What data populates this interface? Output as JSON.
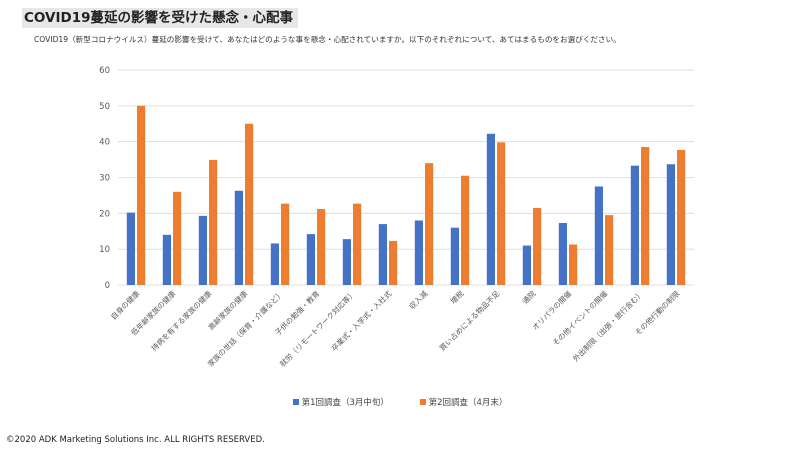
{
  "title": "COVID19蔓延の影響を受けた懸念・心配事",
  "subtitle": "COVID19（新型コロナウイルス）蔓延の影響を受けて、あなたはどのような事を懸念・心配されていますか。以下のそれぞれについて、あてはまるものをお選びください。",
  "copyright": "©2020 ADK Marketing Solutions Inc. ALL RIGHTS RESERVED.",
  "colors": {
    "series1": "#4472c4",
    "series2": "#ed7d31",
    "gridline": "#d9d9d9",
    "axis_text": "#595959"
  },
  "chart_data": {
    "type": "bar",
    "ylim": [
      0,
      60
    ],
    "yticks": [
      0,
      10,
      20,
      30,
      40,
      50,
      60
    ],
    "grid": true,
    "legend_position": "bottom",
    "categories": [
      "自身の健康",
      "低年齢家族の健康",
      "持病を有する家族の健康",
      "高齢家族の健康",
      "家族の世話（保育・介護など）",
      "子供の勉強・教育",
      "就労（リモートワーク対応等）",
      "卒業式・入学式・入社式",
      "収入減",
      "増税",
      "買い占めによる物品不足",
      "通院",
      "オリパラの開催",
      "その他イベントの開催",
      "外出制限（出張・旅行含む）",
      "その他行動の制限"
    ],
    "series": [
      {
        "name": "第1回調査（3月中旬）",
        "values": [
          20.2,
          14.0,
          19.3,
          26.3,
          11.6,
          14.2,
          12.8,
          17.0,
          18.0,
          16.0,
          42.2,
          11.0,
          17.3,
          27.5,
          33.3,
          33.7
        ]
      },
      {
        "name": "第2回調査（4月末）",
        "values": [
          50.0,
          26.0,
          34.9,
          45.0,
          22.7,
          21.2,
          22.7,
          12.3,
          34.0,
          30.5,
          39.8,
          21.5,
          11.3,
          19.5,
          38.5,
          37.7
        ]
      }
    ]
  }
}
